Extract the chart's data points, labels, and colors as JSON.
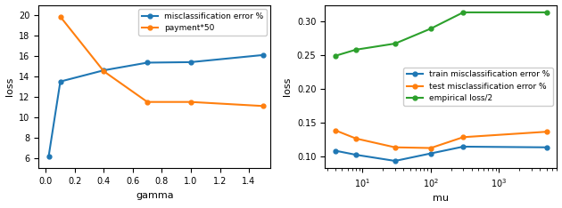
{
  "left": {
    "gamma_misc": [
      0.02,
      0.1,
      0.4,
      0.7,
      1.0,
      1.5
    ],
    "misclassification": [
      6.2,
      13.5,
      14.6,
      15.35,
      15.4,
      16.1
    ],
    "gamma_pay": [
      0.1,
      0.4,
      0.7,
      1.0,
      1.5
    ],
    "payment": [
      19.85,
      14.5,
      11.5,
      11.5,
      11.1
    ],
    "xlim": [
      -0.05,
      1.55
    ],
    "ylim": [
      5,
      21
    ],
    "xticks": [
      0.0,
      0.2,
      0.4,
      0.6,
      0.8,
      1.0,
      1.2,
      1.4
    ],
    "xlabel": "gamma",
    "ylabel": "loss",
    "legend1": "misclassification error %",
    "legend2": "payment*50",
    "color1": "#1f77b4",
    "color2": "#ff7f0e"
  },
  "right": {
    "mu": [
      4,
      8,
      30,
      100,
      300,
      5000
    ],
    "train": [
      0.109,
      0.103,
      0.094,
      0.105,
      0.115,
      0.114
    ],
    "test": [
      0.139,
      0.127,
      0.114,
      0.113,
      0.129,
      0.137
    ],
    "empirical": [
      0.249,
      0.258,
      0.267,
      0.289,
      0.313,
      0.313
    ],
    "xlabel": "mu",
    "ylabel": "loss",
    "legend1": "train misclassification error %",
    "legend2": "test misclassification error %",
    "legend3": "empirical loss/2",
    "color1": "#1f77b4",
    "color2": "#ff7f0e",
    "color3": "#2ca02c"
  }
}
